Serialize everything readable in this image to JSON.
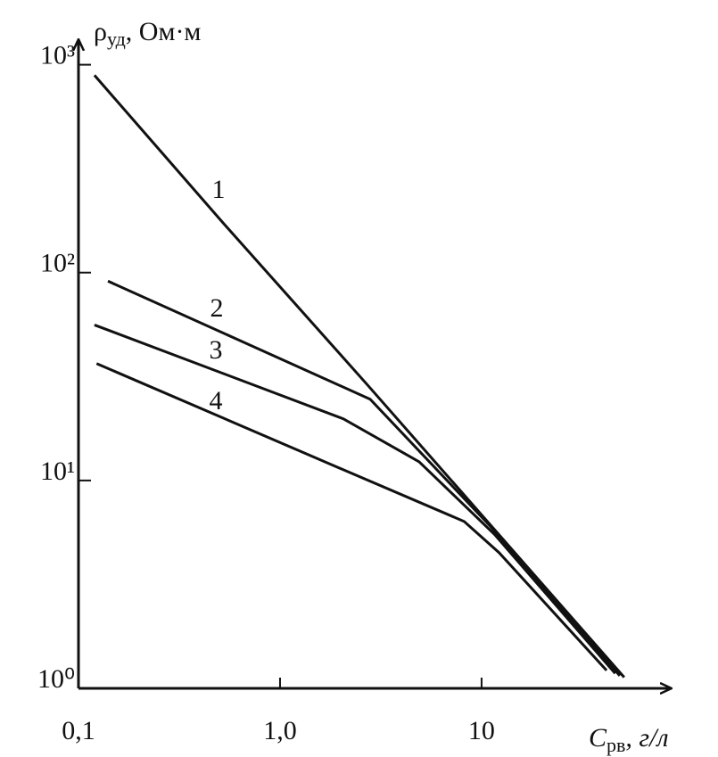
{
  "chart_data": {
    "type": "line",
    "log_x": true,
    "log_y": true,
    "color": "#111111",
    "ylabel": {
      "symbol": "ρ",
      "subscript": "уд",
      "unit": ", Ом·м"
    },
    "xlabel": {
      "symbol": "C",
      "subscript": "рв",
      "unit": ", г/л"
    },
    "xlim": [
      0.1,
      80
    ],
    "ylim": [
      1,
      1250
    ],
    "xticks": [
      {
        "value": 0.1,
        "label": "0,1"
      },
      {
        "value": 1,
        "label": "1,0"
      },
      10
    ],
    "yticks": [
      {
        "value": 1,
        "label": "10⁰"
      },
      {
        "value": 10,
        "label": "10¹"
      },
      {
        "value": 100,
        "label": "10²"
      },
      {
        "value": 1000,
        "label": "10³"
      }
    ],
    "series": [
      {
        "name": "1",
        "color": "#111111",
        "x": [
          0.12,
          0.52,
          2.7,
          51
        ],
        "values": [
          890,
          174,
          29,
          1.13
        ]
      },
      {
        "name": "2",
        "color": "#111111",
        "x": [
          0.14,
          2.8,
          11.1,
          48.5
        ],
        "values": [
          91,
          24.6,
          6.0,
          1.15
        ]
      },
      {
        "name": "3",
        "color": "#111111",
        "x": [
          0.12,
          2.06,
          4.9,
          11.6,
          46
        ],
        "values": [
          56,
          19.8,
          12.3,
          5.5,
          1.18
        ]
      },
      {
        "name": "4",
        "color": "#111111",
        "x": [
          0.123,
          1.96,
          8.2,
          12.2,
          41.7
        ],
        "values": [
          36.5,
          11.5,
          6.35,
          4.5,
          1.22
        ]
      }
    ]
  }
}
